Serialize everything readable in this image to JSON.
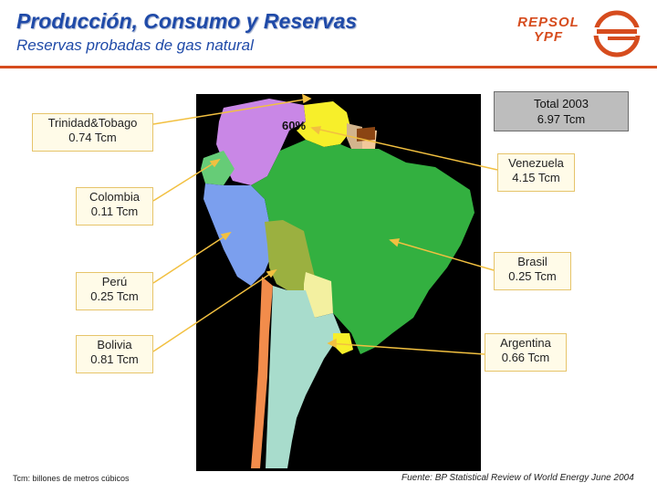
{
  "header": {
    "title": "Producción, Consumo y Reservas",
    "subtitle": "Reservas probadas de gas natural",
    "logo_line1": "REPSOL",
    "logo_line2": "YPF"
  },
  "colors": {
    "brand_blue": "#1f4aa8",
    "brand_orange": "#d64c1e",
    "callout_line": "#f2c040"
  },
  "map_label": "60%",
  "total": {
    "label": "Total 2003",
    "value": "6.97 Tcm"
  },
  "countries": [
    {
      "key": "trinidad",
      "name": "Trinidad&Tobago",
      "value": "0.74 Tcm"
    },
    {
      "key": "colombia",
      "name": "Colombia",
      "value": "0.11 Tcm"
    },
    {
      "key": "peru",
      "name": "Perú",
      "value": "0.25 Tcm"
    },
    {
      "key": "bolivia",
      "name": "Bolivia",
      "value": "0.81 Tcm"
    },
    {
      "key": "venezuela",
      "name": "Venezuela",
      "value": "4.15 Tcm"
    },
    {
      "key": "brasil",
      "name": "Brasil",
      "value": "0.25 Tcm"
    },
    {
      "key": "argentina",
      "name": "Argentina",
      "value": "0.66 Tcm"
    }
  ],
  "footer": {
    "note": "Tcm: billones de metros cúbicos",
    "source": "Fuente: BP Statistical Review of World Energy June 2004"
  }
}
